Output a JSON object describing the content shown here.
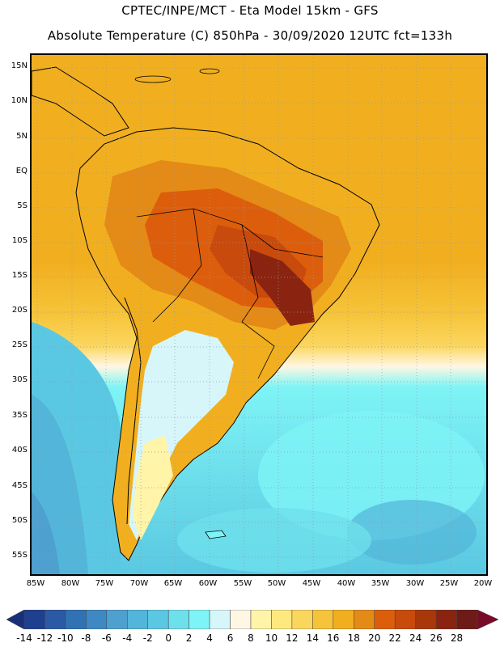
{
  "title_line1": "CPTEC/INPE/MCT -  Eta Model 15km - GFS",
  "title_line2": "Absolute Temperature (C) 850hPa - 30/09/2020 12UTC fct=133h",
  "lat_labels": [
    "15N",
    "10N",
    "5N",
    "EQ",
    "5S",
    "10S",
    "15S",
    "20S",
    "25S",
    "30S",
    "35S",
    "40S",
    "45S",
    "50S",
    "55S"
  ],
  "lon_labels": [
    "85W",
    "80W",
    "75W",
    "70W",
    "65W",
    "60W",
    "55W",
    "50W",
    "45W",
    "40W",
    "35W",
    "30W",
    "25W",
    "20W"
  ],
  "colorbar": {
    "ticks": [
      "-14",
      "-12",
      "-10",
      "-8",
      "-6",
      "-4",
      "-2",
      "0",
      "2",
      "4",
      "6",
      "8",
      "10",
      "12",
      "14",
      "16",
      "18",
      "20",
      "22",
      "24",
      "26",
      "28"
    ],
    "colors": [
      "#1f3f90",
      "#2a5aa5",
      "#3072b4",
      "#3e88c3",
      "#4ea0cf",
      "#52b5d9",
      "#5ac8e2",
      "#6ee0ec",
      "#7ef4f6",
      "#d6f6fa",
      "#fff7e4",
      "#fff4a8",
      "#ffe97e",
      "#fbd65e",
      "#f6c43a",
      "#f1af20",
      "#e48a16",
      "#dc5e0c",
      "#c84a0c",
      "#a8380c",
      "#8a2410",
      "#6e1a16"
    ],
    "under_color": "#1a2f7a",
    "over_color": "#7a0a28"
  }
}
